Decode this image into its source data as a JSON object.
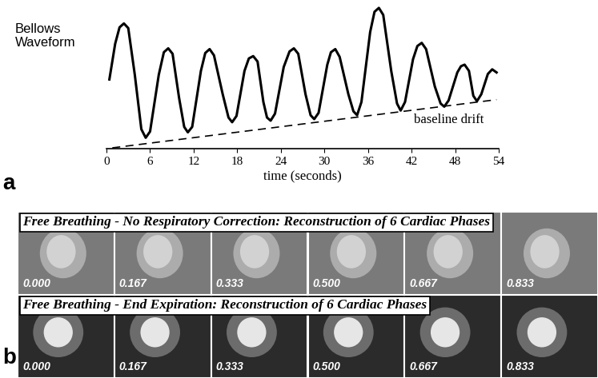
{
  "chart_data": {
    "type": "line",
    "panel_label": "a",
    "y_label": "Bellows\nWaveform",
    "x_label": "time (seconds)",
    "annotation": "baseline drift",
    "series": [
      {
        "x": [
          0.4,
          1.2,
          1.8,
          2.4,
          3.0,
          3.9,
          4.8,
          5.4,
          6.0,
          7.2,
          7.9,
          8.5,
          9.1,
          10.0,
          10.7,
          11.2,
          11.8,
          13.0,
          13.6,
          14.2,
          14.8,
          16.0,
          16.8,
          17.3,
          17.9,
          19.0,
          19.6,
          20.2,
          20.8,
          21.6,
          22.1,
          22.6,
          23.2,
          24.4,
          25.2,
          25.8,
          26.4,
          27.4,
          28.1,
          28.6,
          29.2,
          30.4,
          30.9,
          31.5,
          32.1,
          33.3,
          34.0,
          34.5,
          35.1,
          36.3,
          36.9,
          37.5,
          38.1,
          39.2,
          40.0,
          40.5,
          41.1,
          42.2,
          42.8,
          43.4,
          44.0,
          45.2,
          46.0,
          46.5,
          47.1,
          48.3,
          48.8,
          49.3,
          49.9,
          50.5,
          51.0,
          51.6,
          52.5,
          53.1,
          53.7
        ],
        "values": [
          89,
          135,
          156,
          161,
          155,
          95,
          25,
          14,
          22,
          95,
          124,
          129,
          122,
          65,
          28,
          21,
          28,
          100,
          123,
          128,
          120,
          70,
          40,
          34,
          42,
          100,
          116,
          119,
          112,
          60,
          40,
          36,
          45,
          105,
          125,
          129,
          122,
          70,
          43,
          38,
          46,
          108,
          124,
          128,
          118,
          70,
          48,
          43,
          60,
          150,
          176,
          181,
          172,
          100,
          58,
          49,
          60,
          115,
          132,
          136,
          128,
          80,
          58,
          54,
          62,
          98,
          106,
          108,
          100,
          68,
          61,
          70,
          96,
          102,
          98
        ],
        "color": "#000000",
        "line_style": "solid"
      },
      {
        "x": [
          0.8,
          53.7
        ],
        "values": [
          1,
          63
        ],
        "color": "#000000",
        "line_style": "dashed"
      }
    ],
    "xlim": [
      0,
      54
    ],
    "xticks": [
      0,
      6,
      12,
      18,
      24,
      30,
      36,
      42,
      48,
      54
    ],
    "ylim": [
      0,
      185
    ],
    "yticks": [],
    "tick_labels": "x"
  },
  "image_panel": {
    "panel_label": "b",
    "rows": [
      {
        "title": "Free Breathing - No Respiratory Correction: Reconstruction of 6 Cardiac Phases",
        "phases": [
          "0.000",
          "0.167",
          "0.333",
          "0.500",
          "0.667",
          "0.833"
        ]
      },
      {
        "title": "Free Breathing - End Expiration: Reconstruction of 6 Cardiac Phases",
        "phases": [
          "0.000",
          "0.167",
          "0.333",
          "0.500",
          "0.667",
          "0.833"
        ]
      }
    ]
  }
}
